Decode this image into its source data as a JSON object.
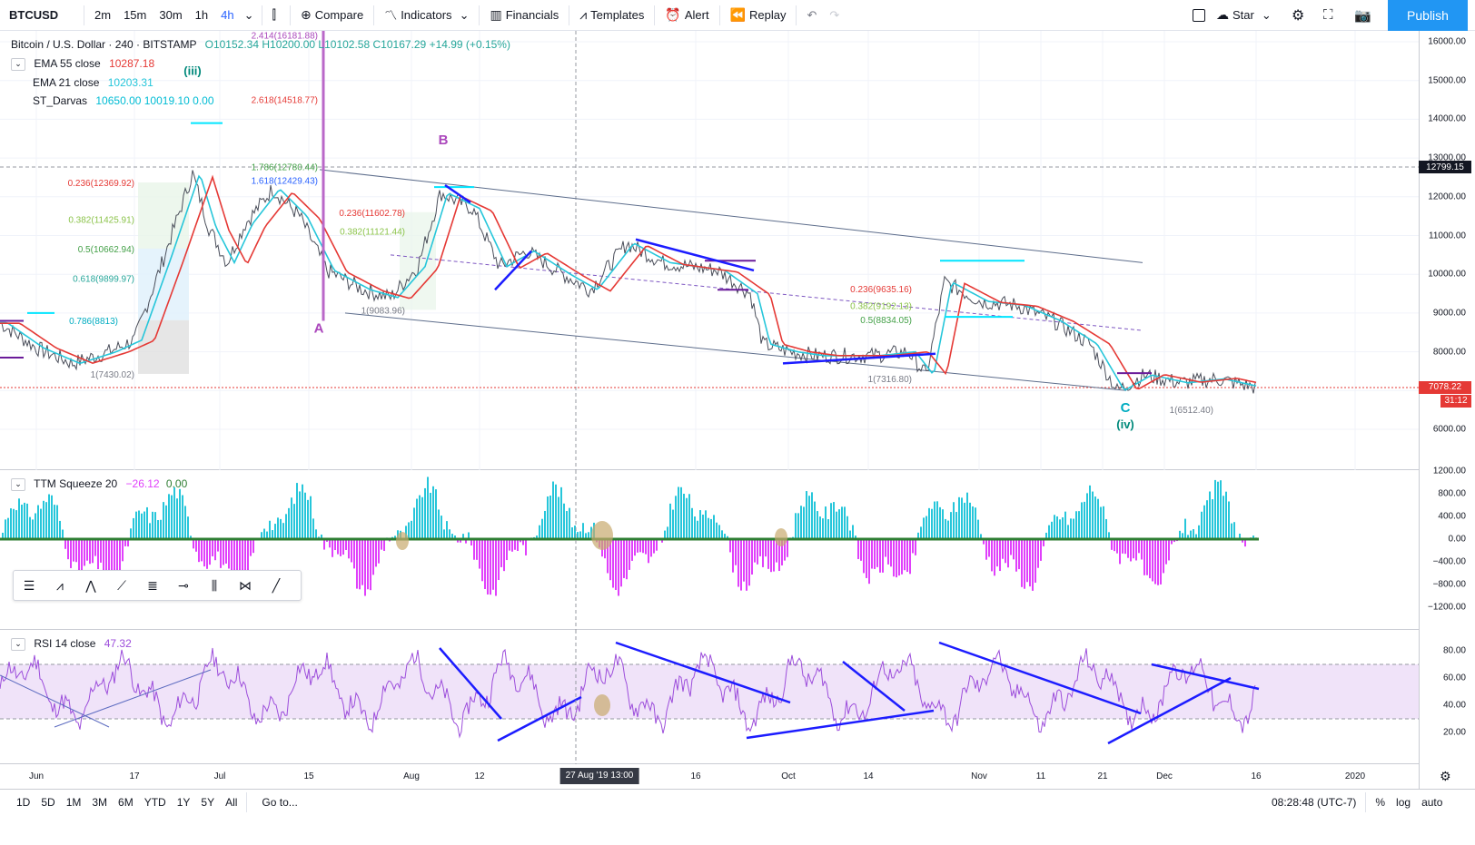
{
  "toolbar": {
    "symbol": "BTCUSD",
    "timeframes": [
      "2m",
      "15m",
      "30m",
      "1h",
      "4h"
    ],
    "active_timeframe": "4h",
    "compare_label": "Compare",
    "indicators_label": "Indicators",
    "financials_label": "Financials",
    "templates_label": "Templates",
    "alert_label": "Alert",
    "replay_label": "Replay",
    "star_label": "Star",
    "publish_label": "Publish"
  },
  "main_pane": {
    "title": "Bitcoin / U.S. Dollar · 240 · BITSTAMP",
    "ohlc": {
      "o": "O10152.34",
      "h": "H10200.00",
      "l": "L10102.58",
      "c": "C10167.29",
      "chg": "+14.99 (+0.15%)"
    },
    "indicators": [
      {
        "name": "EMA 55 close",
        "value": "10287.18",
        "color": "#e53935"
      },
      {
        "name": "EMA 21 close",
        "value": "10203.31",
        "color": "#26c6da"
      },
      {
        "name": "ST_Darvas",
        "value": "10650.00  10019.10  0.00",
        "color": "#00bcd4"
      }
    ],
    "price_ticks": [
      "16000.00",
      "15000.00",
      "14000.00",
      "13000.00",
      "12000.00",
      "11000.00",
      "10000.00",
      "9000.00",
      "8000.00",
      "7000.00",
      "6000.00"
    ],
    "crosshair_price": "12799.15",
    "last_price": "7078.22",
    "countdown": "31:12",
    "wave_labels": [
      "(iii)",
      "B",
      "A",
      "C",
      "(iv)"
    ],
    "fib_labels": [
      "0.236(12369.92)",
      "0.382(11425.91)",
      "0.5(10662.94)",
      "0.618(9899.97)",
      "0.786(8813)",
      "1(7430.02)",
      "2.618(14518.77)",
      "2.414(16181.88)",
      "1.618(12429.43)",
      "1.786(12780.44)",
      "0.236(11602.78)",
      "0.382(11121.44)",
      "0.236(9635.16)",
      "0.382(9192.13)",
      "0.5(8834.05)",
      "1(7316.80)",
      "1(9083.96)",
      "1(6512.40)"
    ]
  },
  "ttm_pane": {
    "name": "TTM Squeeze 20",
    "value1": "−26.12",
    "value2": "0.00",
    "ticks": [
      "1200.00",
      "800.00",
      "400.00",
      "0.00",
      "−400.00",
      "−800.00",
      "−1200.00"
    ]
  },
  "rsi_pane": {
    "name": "RSI 14 close",
    "value": "47.32",
    "ticks": [
      "80.00",
      "60.00",
      "40.00",
      "20.00"
    ]
  },
  "time_axis": {
    "labels": [
      "Jun",
      "17",
      "Jul",
      "15",
      "Aug",
      "12",
      "16",
      "Oct",
      "14",
      "Nov",
      "11",
      "21",
      "Dec",
      "16",
      "2020"
    ],
    "crosshair_time": "27 Aug '19    13:00"
  },
  "bottom": {
    "ranges": [
      "1D",
      "5D",
      "1M",
      "3M",
      "6M",
      "YTD",
      "1Y",
      "5Y",
      "All"
    ],
    "goto_label": "Go to...",
    "clock": "08:28:48 (UTC-7)",
    "percent": "%",
    "log": "log",
    "auto": "auto"
  },
  "colors": {
    "ema55": "#e53935",
    "ema21": "#26c6da",
    "price": "#131722",
    "channel": "#5d6d8b",
    "trendline": "#1c1cff",
    "rsi": "#9c4ddb",
    "rsi_band": "#e9d7f7",
    "squeeze_pos": "#26c6da",
    "squeeze_neg": "#e040fb",
    "badge_red": "#e53935",
    "publish": "#2196f3"
  }
}
